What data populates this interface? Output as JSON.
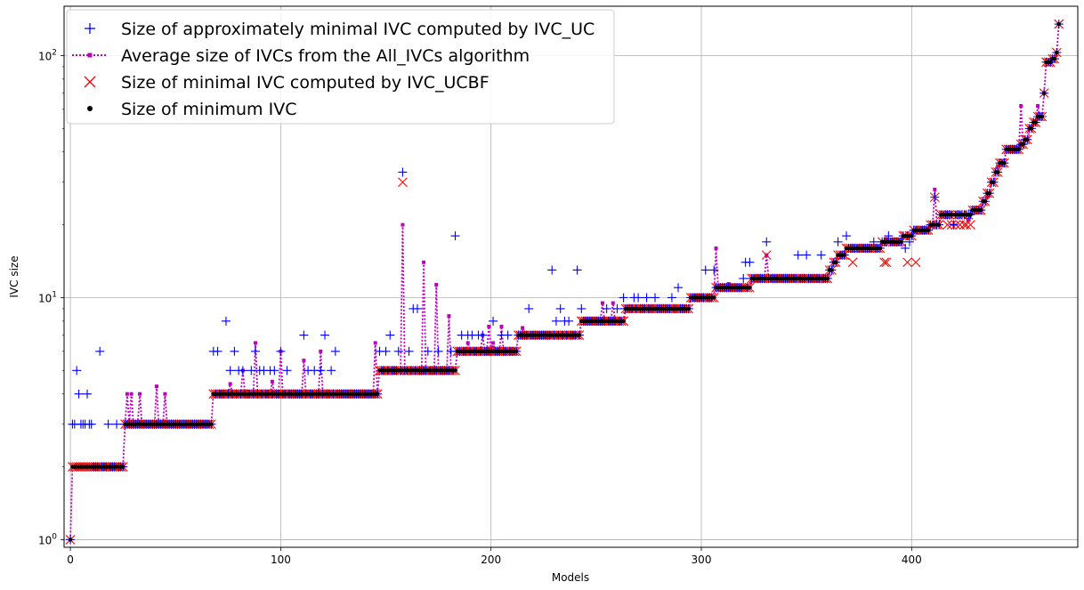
{
  "chart_data": {
    "type": "scatter",
    "title": "",
    "xlabel": "Models",
    "ylabel": "IVC size",
    "xlim": [
      -3,
      479
    ],
    "ylim": [
      0.93,
      160
    ],
    "yscale": "log",
    "grid": true,
    "legend_position": "top-left",
    "x_ticks": [
      0,
      100,
      200,
      300,
      400
    ],
    "y_ticks": [
      {
        "value": 1,
        "base": "10",
        "exp": "0"
      },
      {
        "value": 10,
        "base": "10",
        "exp": "1"
      },
      {
        "value": 100,
        "base": "10",
        "exp": "2"
      }
    ],
    "colors": {
      "uc": "#0000ff",
      "all": "#bf00bf",
      "ucbf": "#ff0000",
      "min": "#000000",
      "grid": "#b0b0b0"
    },
    "minimum_steps": [
      {
        "from": 0,
        "to": 0,
        "value": 1
      },
      {
        "from": 1,
        "to": 25,
        "value": 2
      },
      {
        "from": 26,
        "to": 67,
        "value": 3
      },
      {
        "from": 68,
        "to": 146,
        "value": 4
      },
      {
        "from": 147,
        "to": 183,
        "value": 5
      },
      {
        "from": 184,
        "to": 212,
        "value": 6
      },
      {
        "from": 213,
        "to": 242,
        "value": 7
      },
      {
        "from": 243,
        "to": 263,
        "value": 8
      },
      {
        "from": 264,
        "to": 294,
        "value": 9
      },
      {
        "from": 295,
        "to": 306,
        "value": 10
      },
      {
        "from": 307,
        "to": 323,
        "value": 11
      },
      {
        "from": 324,
        "to": 360,
        "value": 12
      },
      {
        "from": 361,
        "to": 362,
        "value": 13
      },
      {
        "from": 363,
        "to": 364,
        "value": 14
      },
      {
        "from": 365,
        "to": 368,
        "value": 15
      },
      {
        "from": 369,
        "to": 385,
        "value": 16
      },
      {
        "from": 386,
        "to": 395,
        "value": 17
      },
      {
        "from": 396,
        "to": 400,
        "value": 18
      },
      {
        "from": 401,
        "to": 408,
        "value": 19
      },
      {
        "from": 409,
        "to": 413,
        "value": 20
      },
      {
        "from": 414,
        "to": 428,
        "value": 22
      },
      {
        "from": 429,
        "to": 433,
        "value": 23
      },
      {
        "from": 434,
        "to": 435,
        "value": 25
      },
      {
        "from": 436,
        "to": 437,
        "value": 27
      },
      {
        "from": 438,
        "to": 439,
        "value": 30
      },
      {
        "from": 440,
        "to": 441,
        "value": 33
      },
      {
        "from": 442,
        "to": 444,
        "value": 36
      },
      {
        "from": 445,
        "to": 451,
        "value": 41
      },
      {
        "from": 452,
        "to": 453,
        "value": 43
      },
      {
        "from": 454,
        "to": 455,
        "value": 45
      },
      {
        "from": 456,
        "to": 457,
        "value": 50
      },
      {
        "from": 458,
        "to": 459,
        "value": 53
      },
      {
        "from": 460,
        "to": 462,
        "value": 56
      },
      {
        "from": 463,
        "to": 463,
        "value": 70
      },
      {
        "from": 464,
        "to": 466,
        "value": 94
      },
      {
        "from": 467,
        "to": 468,
        "value": 97
      },
      {
        "from": 469,
        "to": 469,
        "value": 103
      },
      {
        "from": 470,
        "to": 470,
        "value": 135
      }
    ],
    "uc_overrides": [
      [
        0,
        1
      ],
      [
        1,
        3
      ],
      [
        2,
        3
      ],
      [
        3,
        5
      ],
      [
        4,
        4
      ],
      [
        5,
        3
      ],
      [
        6,
        3
      ],
      [
        7,
        3
      ],
      [
        8,
        4
      ],
      [
        9,
        3
      ],
      [
        10,
        3
      ],
      [
        14,
        6
      ],
      [
        18,
        3
      ],
      [
        22,
        3
      ],
      [
        68,
        6
      ],
      [
        70,
        6
      ],
      [
        74,
        8
      ],
      [
        76,
        5
      ],
      [
        78,
        6
      ],
      [
        80,
        5
      ],
      [
        82,
        5
      ],
      [
        86,
        5
      ],
      [
        88,
        6
      ],
      [
        90,
        5
      ],
      [
        92,
        5
      ],
      [
        95,
        5
      ],
      [
        97,
        5
      ],
      [
        100,
        6
      ],
      [
        103,
        5
      ],
      [
        111,
        7
      ],
      [
        113,
        5
      ],
      [
        116,
        5
      ],
      [
        119,
        5
      ],
      [
        121,
        7
      ],
      [
        124,
        5
      ],
      [
        126,
        6
      ],
      [
        147,
        6
      ],
      [
        150,
        6
      ],
      [
        152,
        7
      ],
      [
        156,
        6
      ],
      [
        158,
        33
      ],
      [
        161,
        6
      ],
      [
        163,
        9
      ],
      [
        165,
        9
      ],
      [
        170,
        6
      ],
      [
        175,
        6
      ],
      [
        181,
        6
      ],
      [
        183,
        18
      ],
      [
        186,
        7
      ],
      [
        189,
        7
      ],
      [
        191,
        7
      ],
      [
        194,
        7
      ],
      [
        196,
        7
      ],
      [
        201,
        8
      ],
      [
        205,
        7
      ],
      [
        208,
        7
      ],
      [
        218,
        9
      ],
      [
        229,
        13
      ],
      [
        231,
        8
      ],
      [
        233,
        9
      ],
      [
        235,
        8
      ],
      [
        237,
        8
      ],
      [
        241,
        13
      ],
      [
        243,
        9
      ],
      [
        255,
        9
      ],
      [
        260,
        9
      ],
      [
        263,
        10
      ],
      [
        268,
        10
      ],
      [
        270,
        10
      ],
      [
        274,
        10
      ],
      [
        278,
        10
      ],
      [
        286,
        10
      ],
      [
        289,
        11
      ],
      [
        302,
        13
      ],
      [
        304,
        10
      ],
      [
        306,
        13
      ],
      [
        308,
        11
      ],
      [
        320,
        12
      ],
      [
        321,
        14
      ],
      [
        323,
        14
      ],
      [
        331,
        17
      ],
      [
        346,
        15
      ],
      [
        350,
        15
      ],
      [
        357,
        15
      ],
      [
        363,
        14
      ],
      [
        365,
        17
      ],
      [
        369,
        18
      ],
      [
        382,
        17
      ],
      [
        389,
        18
      ],
      [
        397,
        16
      ],
      [
        399,
        17
      ],
      [
        410,
        20
      ],
      [
        411,
        26
      ],
      [
        420,
        20
      ]
    ],
    "all_overrides": [
      [
        0,
        1
      ],
      [
        27,
        4
      ],
      [
        29,
        4
      ],
      [
        33,
        4
      ],
      [
        41,
        4.3
      ],
      [
        45,
        4
      ],
      [
        76,
        4.4
      ],
      [
        82,
        5
      ],
      [
        88,
        6.5
      ],
      [
        96,
        4.5
      ],
      [
        100,
        6
      ],
      [
        111,
        5.5
      ],
      [
        119,
        6
      ],
      [
        145,
        6.5
      ],
      [
        158,
        20
      ],
      [
        168,
        14
      ],
      [
        174,
        11.3
      ],
      [
        180,
        8.4
      ],
      [
        189,
        6.5
      ],
      [
        196,
        7
      ],
      [
        199,
        7.6
      ],
      [
        201,
        6.5
      ],
      [
        205,
        7.6
      ],
      [
        215,
        7.5
      ],
      [
        253,
        9.5
      ],
      [
        258,
        9.5
      ],
      [
        307,
        16
      ],
      [
        313,
        11.4
      ],
      [
        331,
        15
      ],
      [
        388,
        17.5
      ],
      [
        411,
        28
      ],
      [
        427,
        21
      ],
      [
        436,
        26
      ],
      [
        441,
        35
      ],
      [
        452,
        62
      ],
      [
        460,
        62
      ]
    ],
    "ucbf_overrides": [
      [
        158,
        30
      ],
      [
        331,
        15
      ],
      [
        372,
        14
      ],
      [
        387,
        14
      ],
      [
        388,
        14
      ],
      [
        398,
        14
      ],
      [
        402,
        14
      ],
      [
        411,
        26
      ],
      [
        417,
        20
      ],
      [
        419,
        20
      ],
      [
        421,
        20
      ],
      [
        423,
        20
      ],
      [
        425,
        20
      ],
      [
        426,
        20
      ],
      [
        428,
        20
      ]
    ],
    "series_names": [
      "Size of approximately minimal IVC computed by IVC_UC",
      "Average size of IVCs from the All_IVCs algorithm",
      "Size of minimal IVC computed by IVC_UCBF",
      "Size of minimum IVC"
    ]
  }
}
